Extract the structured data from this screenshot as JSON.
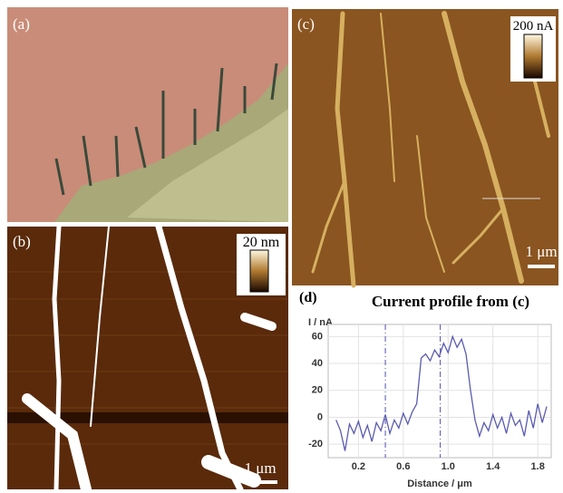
{
  "panels": [
    {
      "label": "(a)"
    },
    {
      "label": "(b)",
      "colorbar_label": "20 nm",
      "scale_bar": "1 μm"
    },
    {
      "label": "(c)",
      "colorbar_label": "200 nA",
      "scale_bar": "1 μm"
    }
  ],
  "chart_data": {
    "type": "line",
    "label": "(d)",
    "title": "Current profile from (c)",
    "y_label": "I / nA",
    "x_label": "Distance / μm",
    "x": [
      0,
      0.04,
      0.08,
      0.12,
      0.16,
      0.2,
      0.24,
      0.28,
      0.32,
      0.36,
      0.4,
      0.44,
      0.48,
      0.52,
      0.56,
      0.6,
      0.64,
      0.68,
      0.72,
      0.76,
      0.8,
      0.84,
      0.88,
      0.92,
      0.96,
      1,
      1.04,
      1.08,
      1.12,
      1.16,
      1.2,
      1.24,
      1.28,
      1.32,
      1.36,
      1.4,
      1.44,
      1.48,
      1.52,
      1.56,
      1.6,
      1.64,
      1.68,
      1.72,
      1.76,
      1.8,
      1.84,
      1.88
    ],
    "series": [
      {
        "color": "#5b5bb0",
        "values": [
          -2,
          -10,
          -25,
          -5,
          -12,
          -3,
          -15,
          -6,
          -18,
          -4,
          -10,
          2,
          -12,
          -2,
          -8,
          3,
          -5,
          4,
          10,
          44,
          47,
          42,
          50,
          45,
          55,
          48,
          60,
          52,
          58,
          47,
          20,
          -2,
          -14,
          -4,
          -10,
          2,
          -8,
          0,
          -12,
          3,
          -6,
          -2,
          -14,
          5,
          -8,
          10,
          -4,
          8
        ]
      }
    ],
    "markers": [
      0.44,
      0.93
    ],
    "xlim": [
      -0.07,
      1.92
    ],
    "ylim": [
      -30,
      69
    ],
    "xticks": [
      0.2,
      0.6,
      {
        "value": 1,
        "label": "1.0"
      },
      1.4,
      1.8
    ],
    "yticks": [
      -20,
      0,
      20,
      40,
      60
    ],
    "grid": true
  }
}
